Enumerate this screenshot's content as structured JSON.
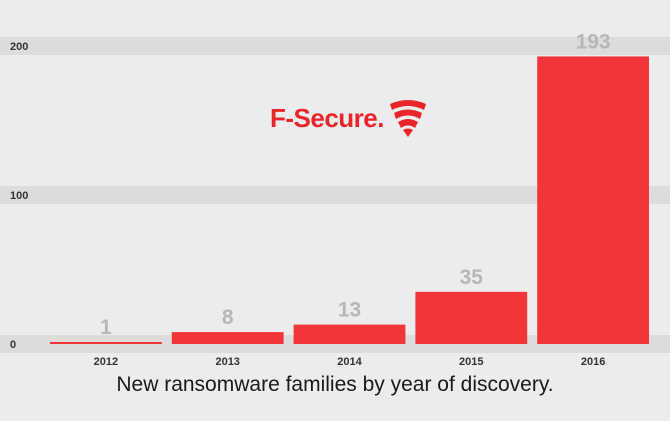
{
  "brand": {
    "name": "F-Secure.",
    "color": "#e8262a"
  },
  "caption": "New ransomware families by year of discovery.",
  "colors": {
    "bar": "#f23538",
    "data_label": "#b7b7b7",
    "band": "#dcdcdc",
    "background": "#ececec"
  },
  "chart_data": {
    "type": "bar",
    "title": "New ransomware families by year of discovery.",
    "categories": [
      "2012",
      "2013",
      "2014",
      "2015",
      "2016"
    ],
    "values": [
      1,
      8,
      13,
      35,
      193
    ],
    "data_labels": [
      "1",
      "8",
      "13",
      "35",
      "193"
    ],
    "y_ticks": [
      0,
      100,
      200
    ],
    "ylim": [
      0,
      200
    ],
    "xlabel": "",
    "ylabel": "",
    "grid": true,
    "legend": "none"
  }
}
